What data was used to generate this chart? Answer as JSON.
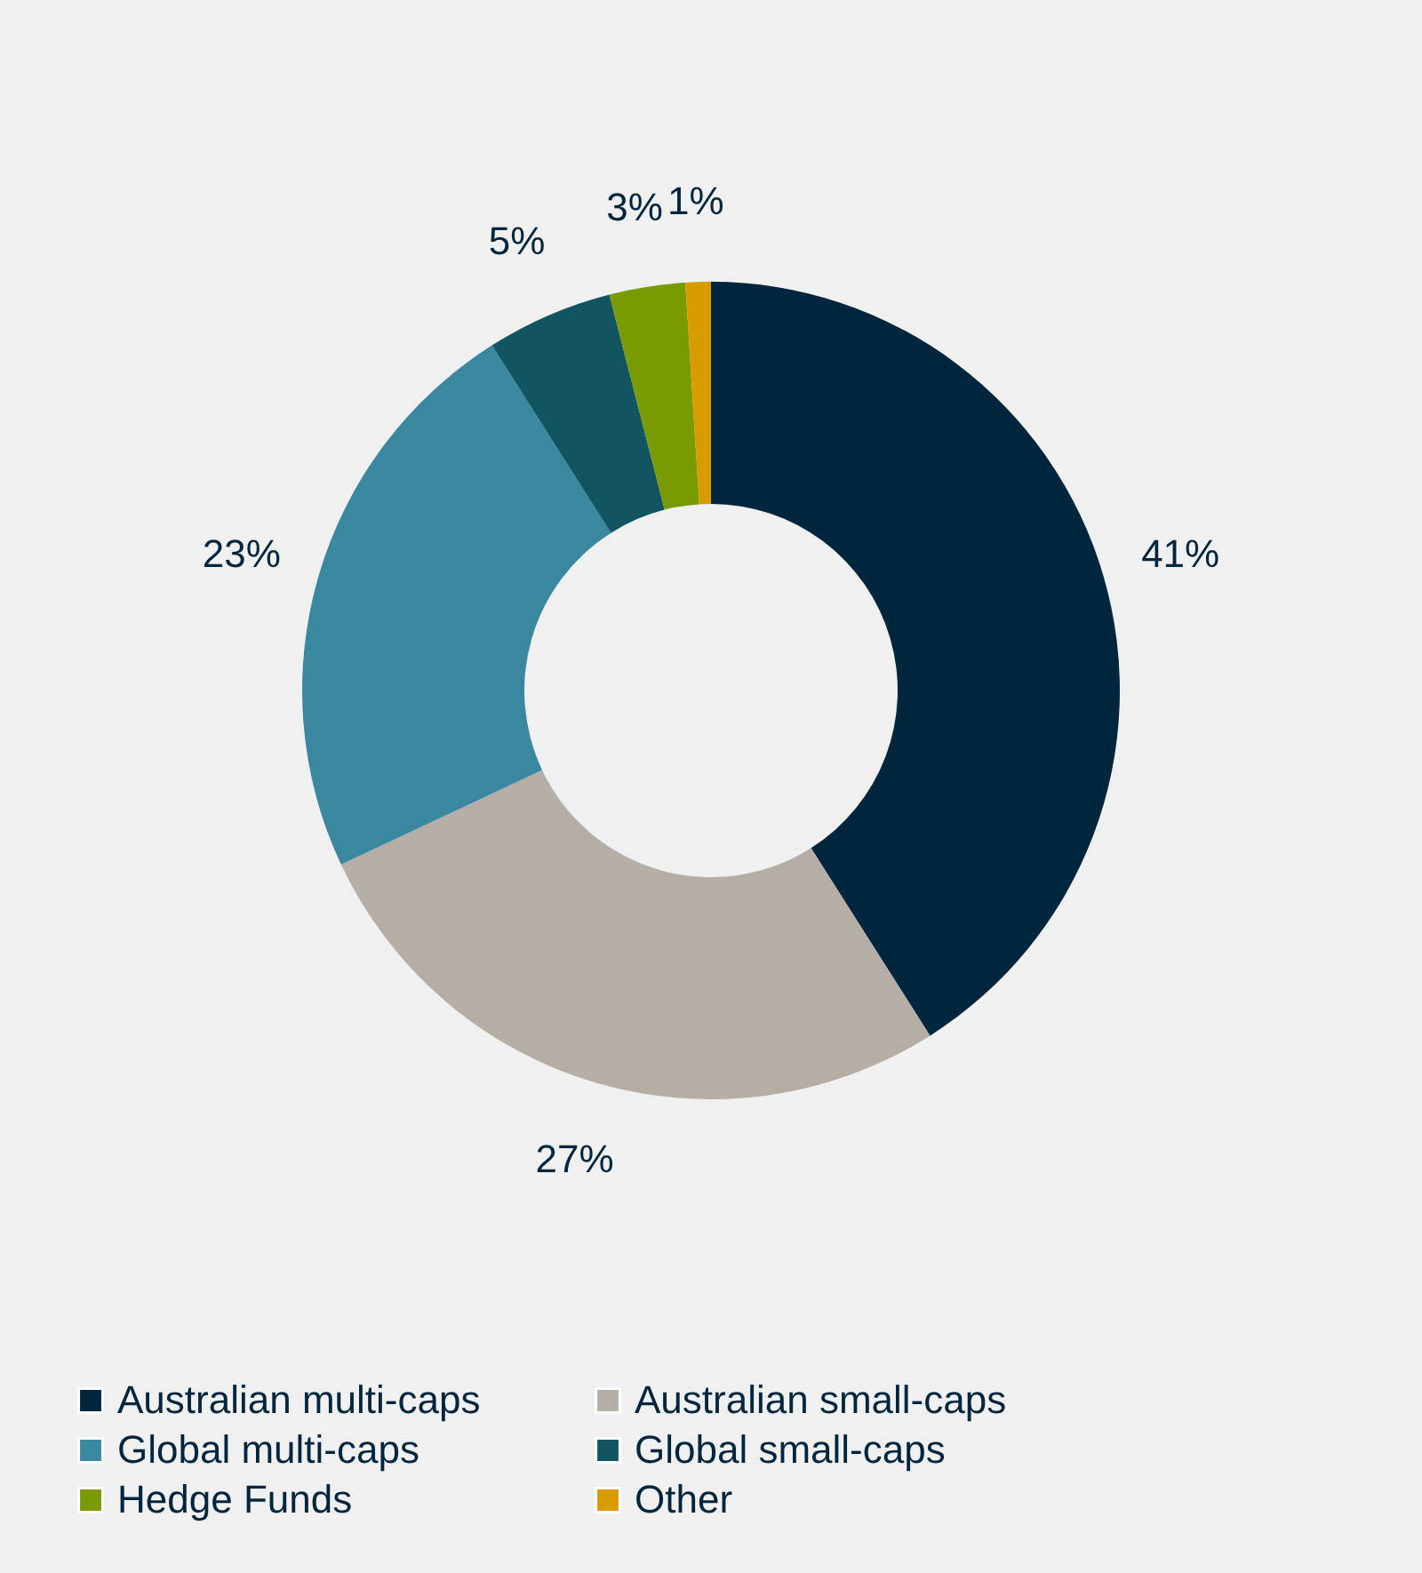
{
  "chart_data": {
    "type": "donut",
    "categories": [
      "Australian multi-caps",
      "Australian small-caps",
      "Global multi-caps",
      "Global small-caps",
      "Hedge Funds",
      "Other"
    ],
    "values": [
      41,
      27,
      23,
      5,
      3,
      1
    ],
    "colors": [
      "#00263e",
      "#b5aea7",
      "#3a87a0",
      "#115560",
      "#7a9a01",
      "#d89b00"
    ],
    "value_labels": [
      "41%",
      "27%",
      "23%",
      "5%",
      "3%",
      "1%"
    ],
    "legend": "bottom"
  }
}
